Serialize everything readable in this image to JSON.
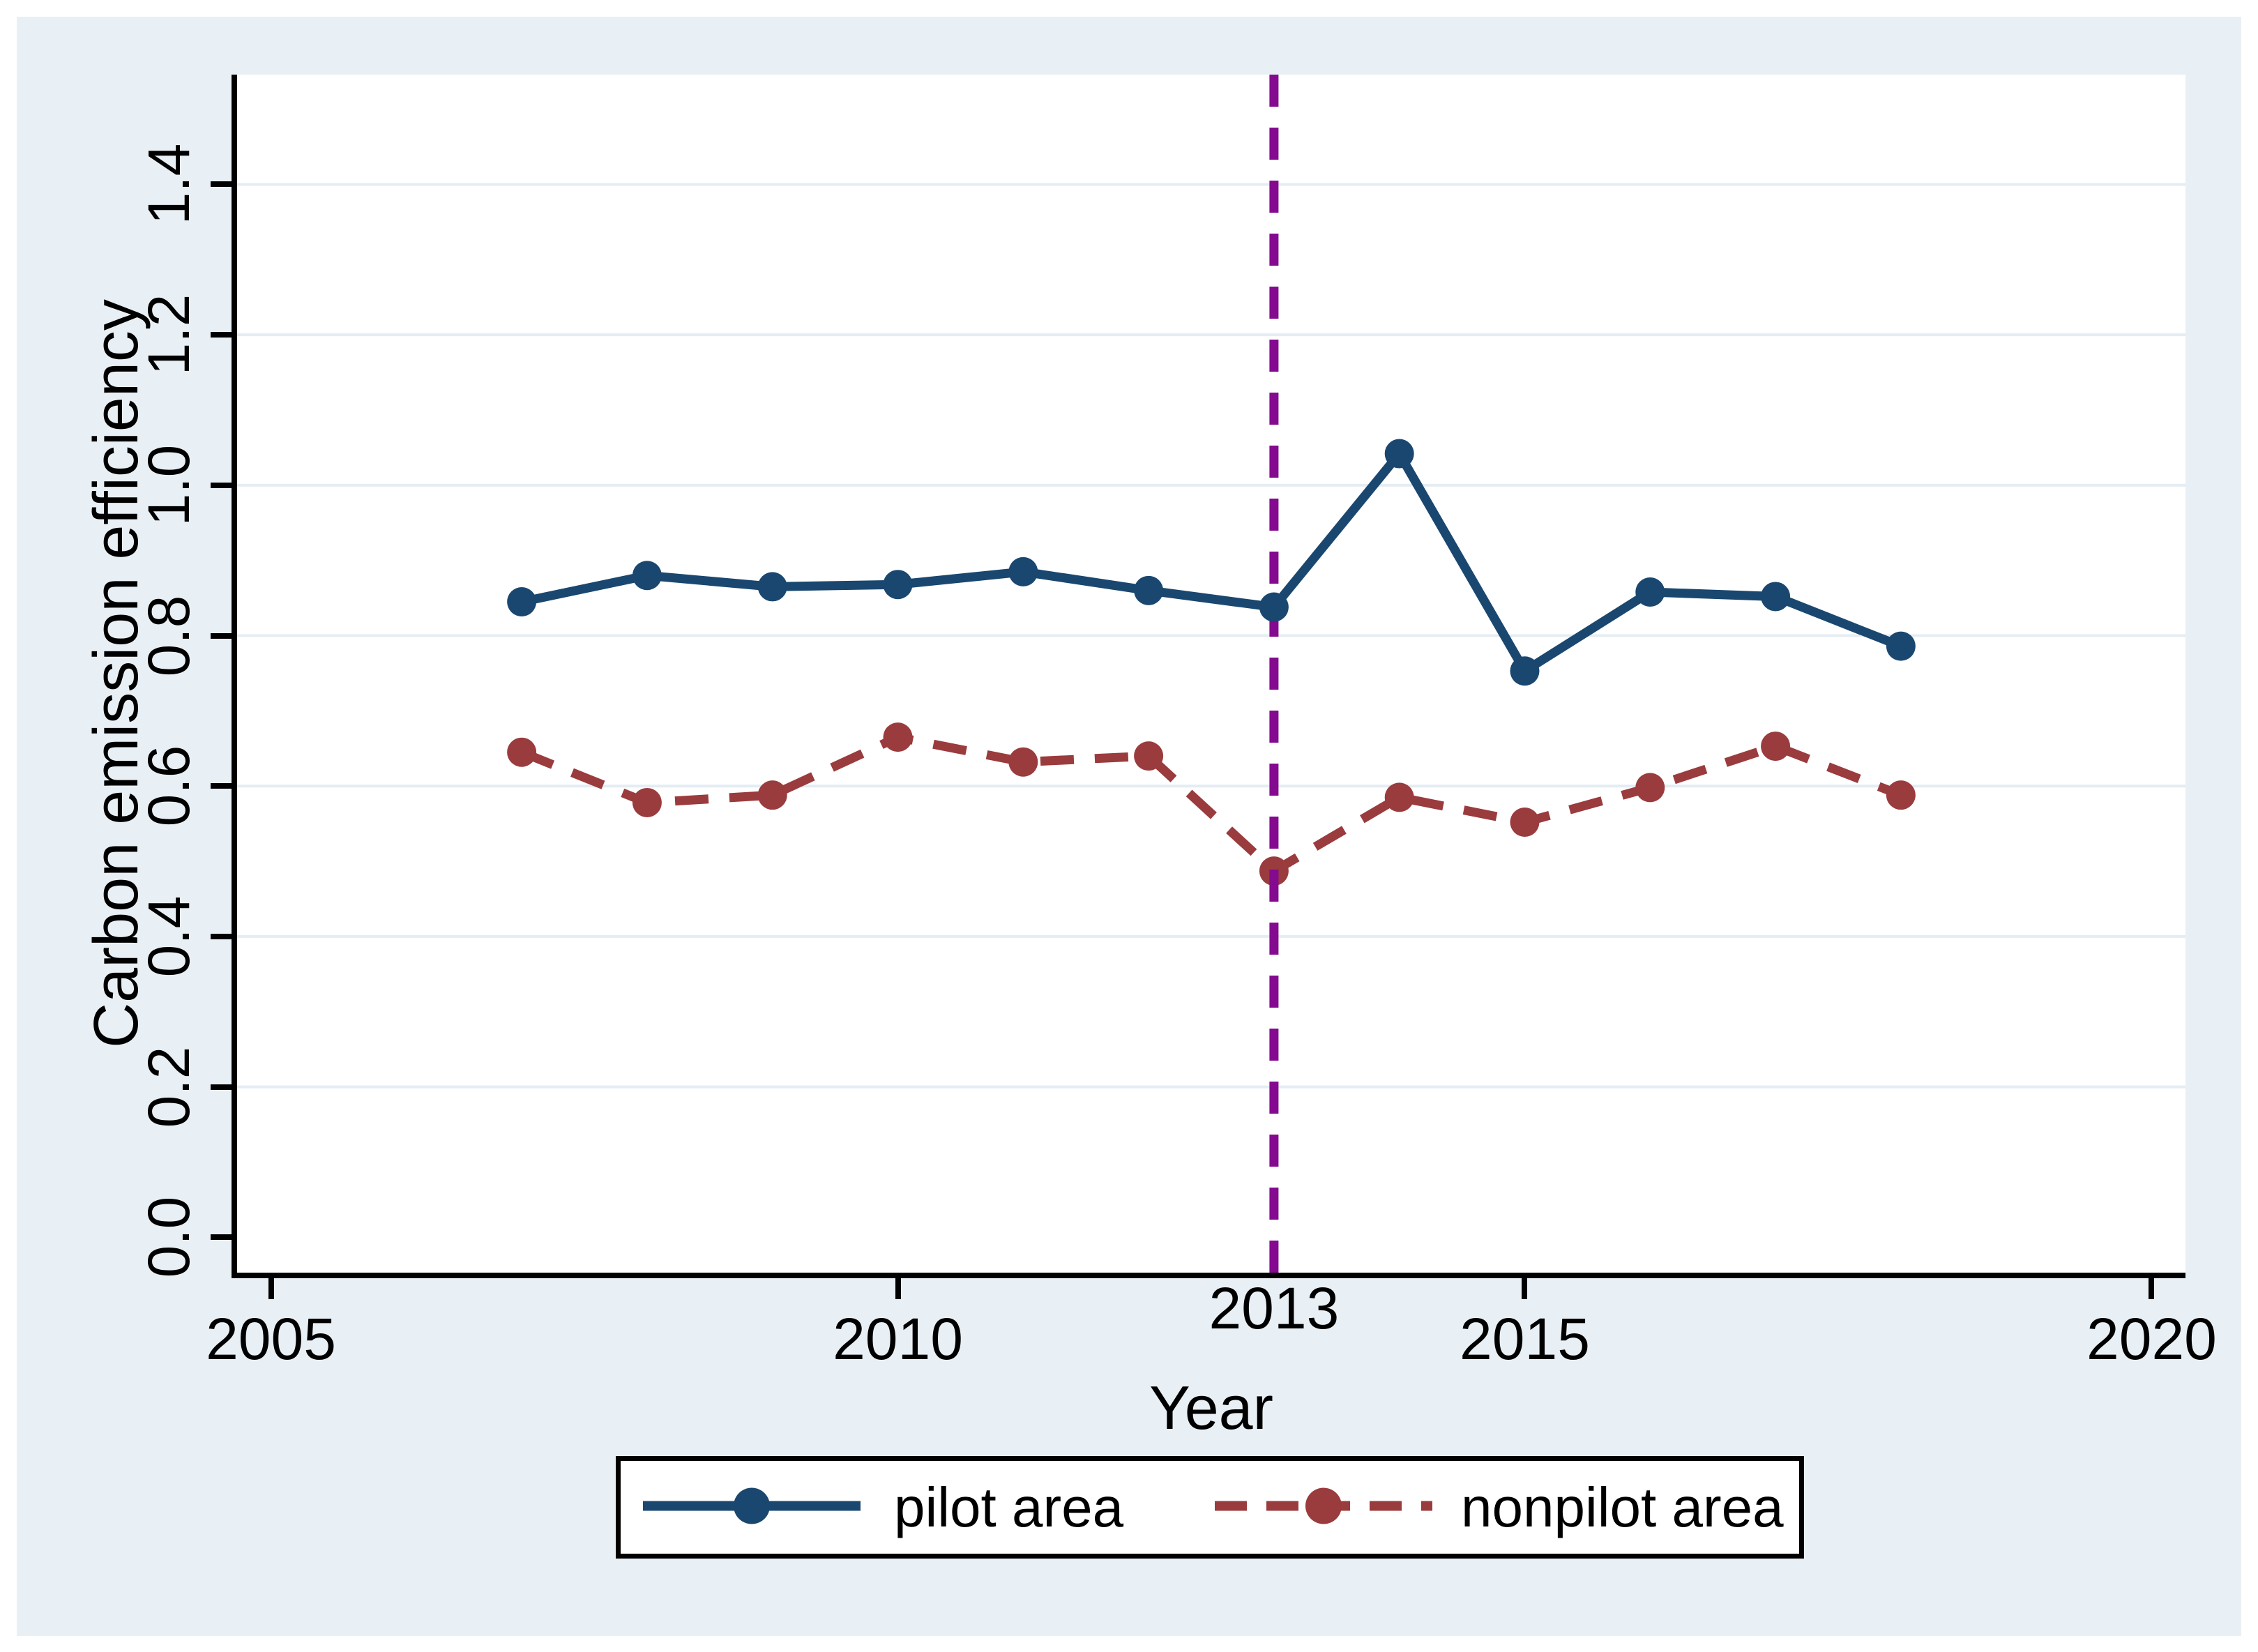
{
  "figure": {
    "canvas_bg": "#e9f0f5",
    "plot_bg": "#ffffff",
    "gridline_color": "#e4edf3",
    "axis_color": "#000000",
    "text_color": "#000000"
  },
  "chart_data": {
    "type": "line",
    "title": "",
    "xlabel": "Year",
    "ylabel": "Carbon emission efficiency",
    "x": [
      2007,
      2008,
      2009,
      2010,
      2011,
      2012,
      2013,
      2014,
      2015,
      2016,
      2017,
      2018
    ],
    "series": [
      {
        "name": "pilot area",
        "color": "#1a476f",
        "line_style": "solid",
        "marker": "circle",
        "values": [
          0.845,
          0.88,
          0.865,
          0.868,
          0.885,
          0.86,
          0.838,
          1.042,
          0.753,
          0.858,
          0.852,
          0.786
        ]
      },
      {
        "name": "nonpilot area",
        "color": "#9a3b3d",
        "line_style": "dashed",
        "marker": "circle",
        "values": [
          0.645,
          0.578,
          0.588,
          0.665,
          0.632,
          0.64,
          0.487,
          0.585,
          0.552,
          0.598,
          0.653,
          0.588
        ]
      }
    ],
    "xlim": [
      2004.73,
      2020.27
    ],
    "ylim": [
      -0.047,
      1.546
    ],
    "x_ticks": [
      2005,
      2010,
      2015,
      2020
    ],
    "x_tick_labels": [
      "2005",
      "2010",
      "2015",
      "2020"
    ],
    "y_ticks": [
      0.0,
      0.2,
      0.4,
      0.6,
      0.8,
      1.0,
      1.2,
      1.4
    ],
    "y_tick_labels": [
      "0.0",
      "0.2",
      "0.4",
      "0.6",
      "0.8",
      "1.0",
      "1.2",
      "1.4"
    ],
    "grid": "horizontal",
    "vline": {
      "x": 2013,
      "label": "2013",
      "color": "#840a8f",
      "style": "dashed"
    },
    "legend_position": "bottom"
  },
  "legend": {
    "items": [
      {
        "label": "pilot area"
      },
      {
        "label": "nonpilot area"
      }
    ]
  }
}
